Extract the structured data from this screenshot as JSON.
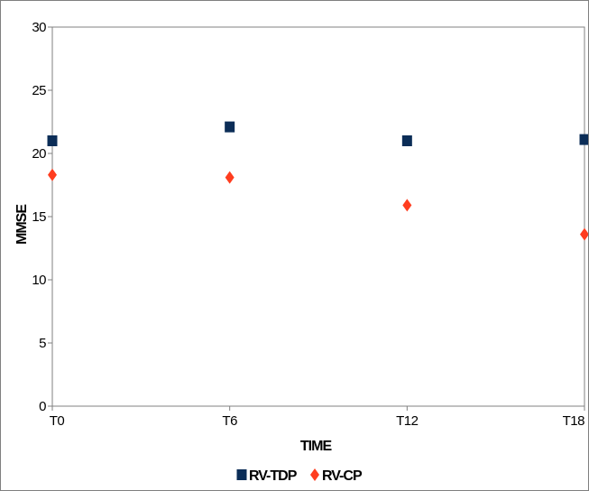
{
  "chart_data": {
    "type": "scatter",
    "categories": [
      "T0",
      "T6",
      "T12",
      "T18"
    ],
    "series": [
      {
        "name": "RV-TDP",
        "values": [
          21.0,
          22.1,
          21.0,
          21.1
        ],
        "color": "#0b2d57",
        "marker": "square"
      },
      {
        "name": "RV-CP",
        "values": [
          18.3,
          18.1,
          15.9,
          13.6
        ],
        "color": "#ff3d1f",
        "marker": "diamond"
      }
    ],
    "xlabel": "TIME",
    "ylabel": "MMSE",
    "ylim": [
      0,
      30
    ],
    "yticks": [
      0,
      5,
      10,
      15,
      20,
      25,
      30
    ],
    "grid": false,
    "legend": "bottom"
  }
}
